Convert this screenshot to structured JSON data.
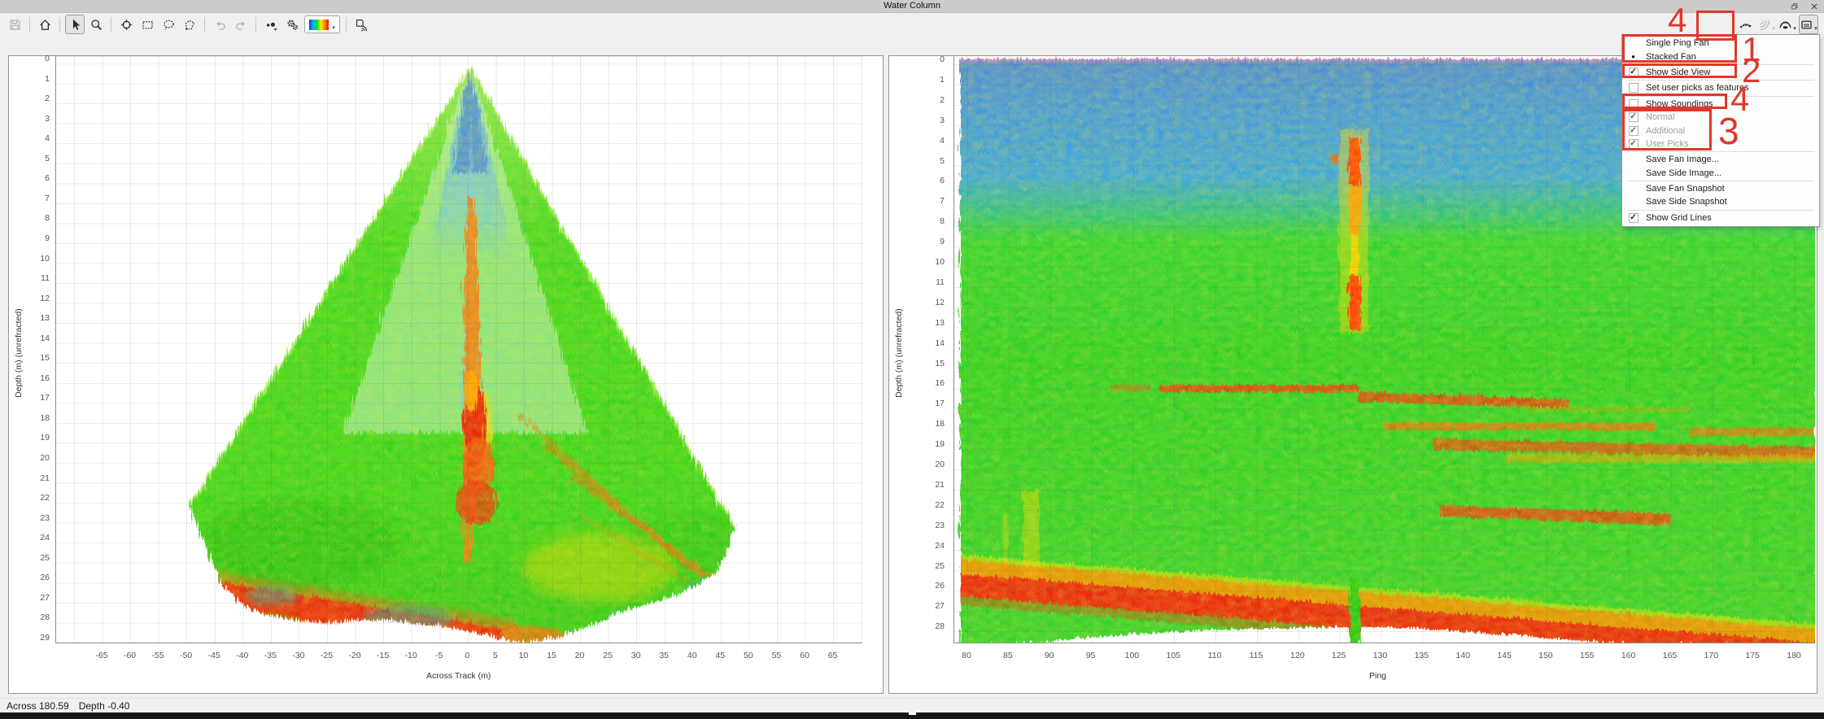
{
  "window": {
    "title": "Water Column",
    "controls": [
      {
        "icon": "restore",
        "name": "restore-window-button"
      },
      {
        "icon": "close",
        "name": "close-window-button"
      }
    ]
  },
  "toolbar": {
    "left": [
      {
        "icon": "save",
        "name": "save-button",
        "state": "disabled"
      },
      {
        "type": "sep"
      },
      {
        "icon": "home",
        "name": "home-button"
      },
      {
        "type": "sep"
      },
      {
        "icon": "cursor",
        "name": "cursor-select-button",
        "state": "active"
      },
      {
        "icon": "zoom",
        "name": "zoom-button"
      },
      {
        "type": "sep"
      },
      {
        "icon": "target",
        "name": "zoom-selection-button"
      },
      {
        "icon": "rect",
        "name": "rect-select-button"
      },
      {
        "icon": "lasso",
        "name": "lasso-select-button"
      },
      {
        "icon": "poly",
        "name": "polygon-select-button"
      },
      {
        "type": "sep"
      },
      {
        "icon": "undo",
        "name": "undo-button",
        "state": "disabled"
      },
      {
        "icon": "redo",
        "name": "redo-button",
        "state": "disabled"
      },
      {
        "type": "sep"
      },
      {
        "icon": "points",
        "name": "point-detect-button"
      },
      {
        "icon": "gears",
        "name": "settings-button"
      },
      {
        "type": "colormap",
        "name": "colormap-select"
      },
      {
        "type": "sep"
      },
      {
        "icon": "savefan",
        "name": "save-fan-button"
      }
    ],
    "right": [
      {
        "icon": "dots",
        "name": "soundings-options-button"
      },
      {
        "icon": "fan",
        "name": "fan-options-button",
        "state": "disabled",
        "arrow": true
      },
      {
        "icon": "stack",
        "name": "stacked-view-button",
        "arrow": true
      },
      {
        "icon": "panel",
        "name": "side-view-toggle-button",
        "state": "active",
        "arrow": true
      }
    ]
  },
  "menu": {
    "items": [
      {
        "label": "Single Ping Fan",
        "type": "radio",
        "checked": false,
        "name": "menu-item-single-ping-fan"
      },
      {
        "label": "Stacked Fan",
        "type": "radio",
        "checked": true,
        "name": "menu-item-stacked-fan"
      },
      {
        "type": "sep"
      },
      {
        "label": "Show Side View",
        "type": "check",
        "checked": true,
        "name": "menu-item-show-side-view"
      },
      {
        "type": "sep"
      },
      {
        "label": "Set user picks as features",
        "type": "check",
        "checked": false,
        "name": "menu-item-set-user-picks-as-features"
      },
      {
        "type": "sep"
      },
      {
        "label": "Show Soundings",
        "type": "check",
        "checked": false,
        "name": "menu-item-show-soundings"
      },
      {
        "label": "Normal",
        "type": "check",
        "checked": true,
        "disabled": true,
        "name": "menu-item-normal"
      },
      {
        "label": "Additional",
        "type": "check",
        "checked": true,
        "disabled": true,
        "name": "menu-item-additional"
      },
      {
        "label": "User Picks",
        "type": "check",
        "checked": true,
        "disabled": true,
        "name": "menu-item-user-picks"
      },
      {
        "type": "sep"
      },
      {
        "label": "Save Fan Image...",
        "type": "plain",
        "name": "menu-item-save-fan-image"
      },
      {
        "label": "Save Side Image...",
        "type": "plain",
        "name": "menu-item-save-side-image"
      },
      {
        "type": "sep"
      },
      {
        "label": "Save Fan Snapshot",
        "type": "plain",
        "name": "menu-item-save-fan-snapshot"
      },
      {
        "label": "Save Side Snapshot",
        "type": "plain",
        "name": "menu-item-save-side-snapshot"
      },
      {
        "type": "sep"
      },
      {
        "label": "Show Grid Lines",
        "type": "check",
        "checked": true,
        "name": "menu-item-show-grid-lines"
      }
    ]
  },
  "annotations": {
    "color": "#e0372b",
    "items": [
      {
        "label": "4",
        "target": "soundings-options-button"
      },
      {
        "label": "1",
        "target": "fan-mode-options"
      },
      {
        "label": "2",
        "target": "show-side-view"
      },
      {
        "label": "4",
        "target": "show-soundings"
      },
      {
        "label": "3",
        "target": "soundings-type-options"
      }
    ]
  },
  "chart_data": [
    {
      "type": "heatmap",
      "name": "fan_view",
      "xlabel": "Across Track (m)",
      "ylabel": "Depth (m) (unrefracted)",
      "x_ticks": [
        -65,
        -60,
        -55,
        -50,
        -45,
        -40,
        -35,
        -30,
        -25,
        -20,
        -15,
        -10,
        -5,
        0,
        5,
        10,
        15,
        20,
        25,
        30,
        35,
        40,
        45,
        50,
        55,
        60,
        65
      ],
      "y_ticks": [
        0,
        1,
        2,
        3,
        4,
        5,
        6,
        7,
        8,
        9,
        10,
        11,
        12,
        13,
        14,
        15,
        16,
        17,
        18,
        19,
        20,
        21,
        22,
        23,
        24,
        25,
        26,
        27,
        28,
        29
      ],
      "xlim": [
        -73,
        72
      ],
      "ylim": [
        29.4,
        0
      ],
      "grid": true,
      "features": {
        "fan_apex": {
          "across_m": 0,
          "depth_m": 0
        },
        "fan_left_extent": {
          "across_m": -50,
          "depth_m": 22
        },
        "fan_right_extent": {
          "across_m": 47,
          "depth_m": 23
        },
        "max_depth_m": 29,
        "surface_noise": {
          "across_m": [
            -8,
            8
          ],
          "depth_m": [
            0,
            10
          ],
          "color": "blue"
        },
        "water_column": {
          "color": "green"
        },
        "center_target": {
          "across_m": [
            0,
            3
          ],
          "depth_m": [
            12,
            26
          ],
          "color": "red-orange"
        },
        "seabed_return": {
          "across_m": [
            -45,
            10
          ],
          "depth_m": [
            22.5,
            25.5
          ],
          "color": "red"
        },
        "side_lobe_streaks": {
          "across_m": [
            10,
            45
          ],
          "depth_m": [
            17,
            26
          ],
          "color": "orange"
        }
      }
    },
    {
      "type": "heatmap",
      "name": "side_view",
      "xlabel": "Ping",
      "ylabel": "Depth (m) (unrefracted)",
      "x_ticks": [
        80,
        85,
        90,
        95,
        100,
        105,
        110,
        115,
        120,
        125,
        130,
        135,
        140,
        145,
        150,
        155,
        160,
        165,
        170,
        175,
        180
      ],
      "y_ticks": [
        0,
        1,
        2,
        3,
        4,
        5,
        6,
        7,
        8,
        9,
        10,
        11,
        12,
        13,
        14,
        15,
        16,
        17,
        18,
        19,
        20,
        21,
        22,
        23,
        24,
        25,
        26,
        27,
        28
      ],
      "xlim": [
        79,
        180
      ],
      "ylim": [
        28.8,
        0
      ],
      "grid": true,
      "features": {
        "surface_layer": {
          "depth_m": [
            0,
            8
          ],
          "color": "blue"
        },
        "water_column": {
          "depth_m": [
            8,
            25
          ],
          "color": "green"
        },
        "seabed_line": {
          "from_ping_depth": [
            80,
            25.2
          ],
          "to_ping_depth": [
            180,
            28.6
          ],
          "color": "red"
        },
        "vertical_target": {
          "ping": 126.5,
          "depth_m": [
            3.5,
            13
          ],
          "color": "red-yellow"
        },
        "horizontal_streaks": [
          {
            "ping": [
              103,
              127
            ],
            "depth_m": 16
          },
          {
            "ping": [
              127,
              153
            ],
            "depth_m": 16.6
          },
          {
            "ping": [
              130,
              180
            ],
            "depth_m": 18
          },
          {
            "ping": [
              136,
              180
            ],
            "depth_m": 18.7
          },
          {
            "ping": [
              145,
              180
            ],
            "depth_m": 19.4
          },
          {
            "ping": [
              137,
              165
            ],
            "depth_m": 22
          }
        ],
        "sub_bottom_columns": {
          "ping": [
            85,
            89
          ],
          "depth_m": [
            21,
            26
          ],
          "color": "yellow"
        }
      }
    }
  ],
  "status": {
    "across": "Across 180.59",
    "depth": "Depth -0.40"
  }
}
